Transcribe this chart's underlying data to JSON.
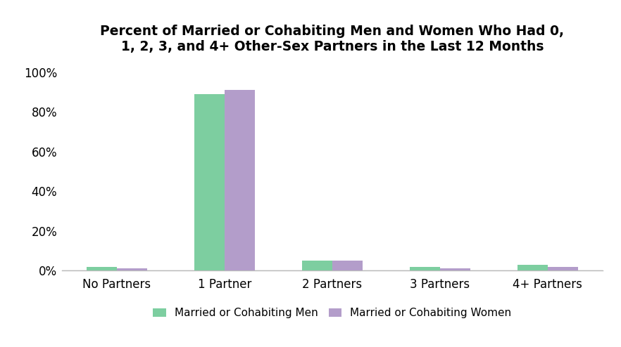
{
  "title": "Percent of Married or Cohabiting Men and Women Who Had 0,\n1, 2, 3, and 4+ Other-Sex Partners in the Last 12 Months",
  "categories": [
    "No Partners",
    "1 Partner",
    "2 Partners",
    "3 Partners",
    "4+ Partners"
  ],
  "men_values": [
    2,
    89,
    5,
    2,
    3
  ],
  "women_values": [
    1,
    91,
    5,
    1,
    2
  ],
  "men_color": "#7DCEA0",
  "women_color": "#B39DCA",
  "men_label": "Married or Cohabiting Men",
  "women_label": "Married or Cohabiting Women",
  "ylim": [
    0,
    105
  ],
  "yticks": [
    0,
    20,
    40,
    60,
    80,
    100
  ],
  "ytick_labels": [
    "0%",
    "20%",
    "40%",
    "60%",
    "80%",
    "100%"
  ],
  "background_color": "#ffffff",
  "bar_width": 0.28,
  "title_fontsize": 13.5,
  "tick_fontsize": 12,
  "legend_fontsize": 11,
  "axis_line_color": "#bbbbbb"
}
